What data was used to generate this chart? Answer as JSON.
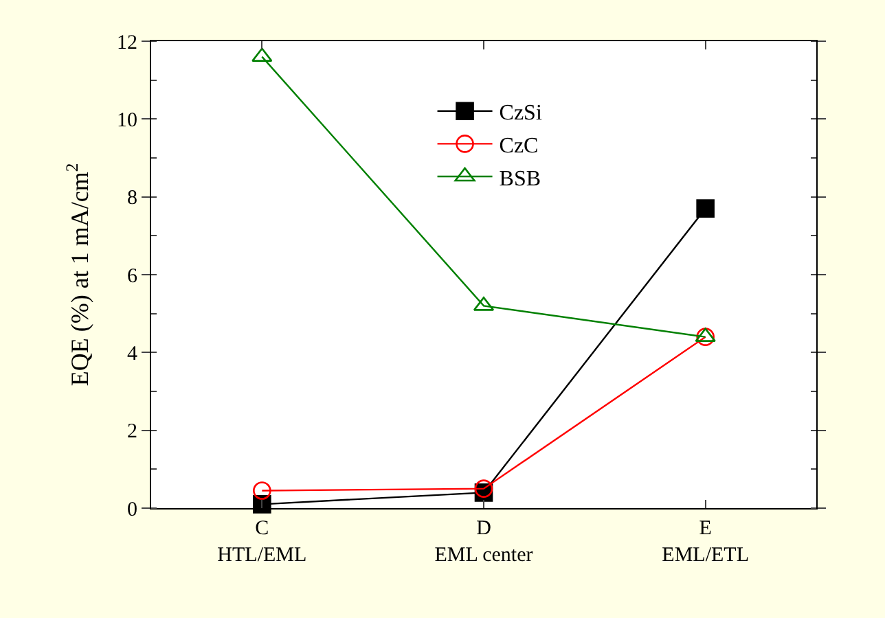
{
  "chart_data": {
    "type": "line",
    "ylabel": "EQE (%) at 1 mA/cm$^{2}$",
    "categories": [
      "C\nHTL/EML",
      "D\nEML center",
      "E\nEML/ETL"
    ],
    "ylim": [
      0,
      12
    ],
    "yticks": [
      0,
      2,
      4,
      6,
      8,
      10,
      12
    ],
    "legend": "top",
    "series": [
      {
        "name": "CzSi",
        "color": "#000000",
        "marker": "square",
        "values": [
          0.1,
          0.4,
          7.7
        ]
      },
      {
        "name": "CzC",
        "color": "#ff0000",
        "marker": "circle",
        "values": [
          0.45,
          0.5,
          4.4
        ]
      },
      {
        "name": "BSB",
        "color": "#008000",
        "marker": "triangle",
        "values": [
          11.6,
          5.2,
          4.4
        ]
      }
    ]
  }
}
